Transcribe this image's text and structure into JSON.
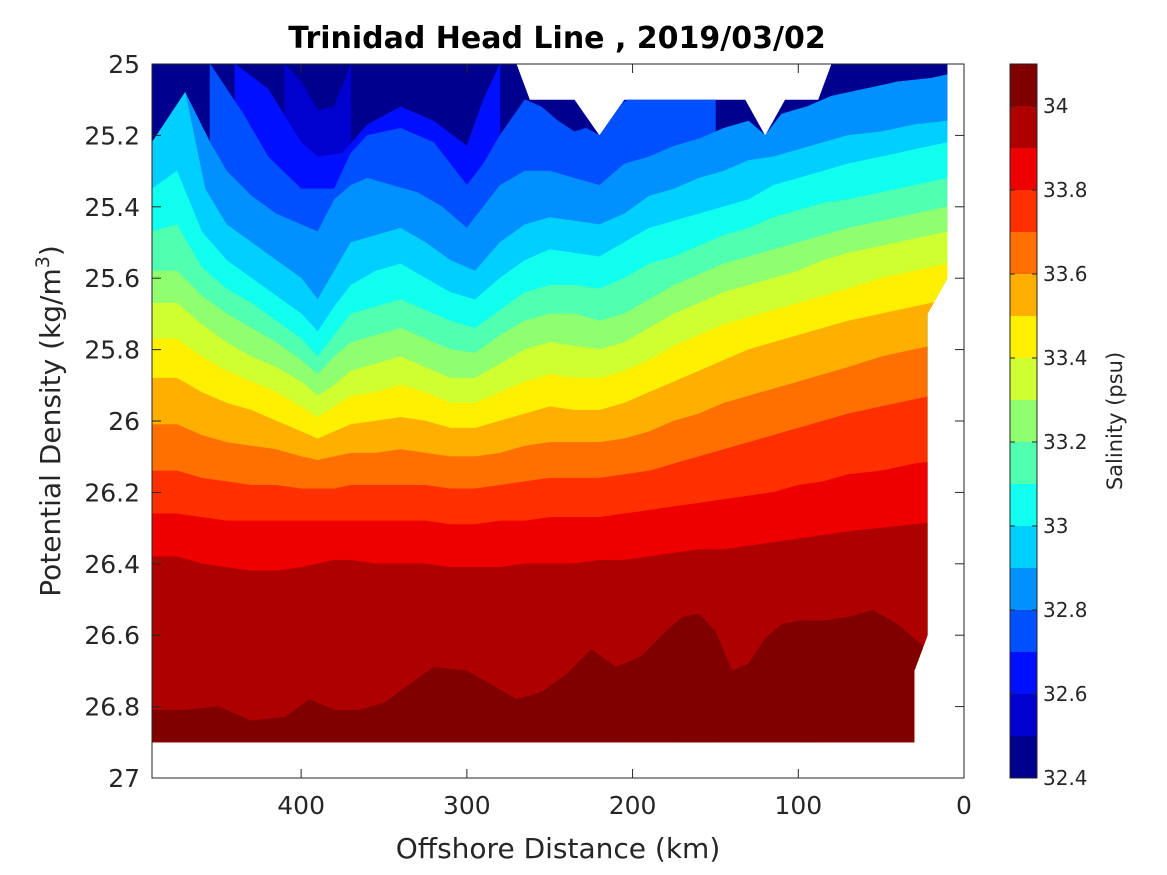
{
  "chart_data": {
    "type": "heatmap",
    "subtype": "filled-contour section",
    "title": "Trinidad Head Line , 2019/03/02",
    "xlabel": "Offshore Distance (km)",
    "ylabel_main": "Potential Density (kg/m",
    "ylabel_sup": "3",
    "ylabel_close": ")",
    "xlim": [
      490,
      0
    ],
    "x_reversed": true,
    "ylim": [
      25,
      27
    ],
    "y_reversed": true,
    "x_ticks": [
      400,
      300,
      200,
      100,
      0
    ],
    "x_tick_labels": [
      "400",
      "300",
      "200",
      "100",
      "0"
    ],
    "y_ticks": [
      25,
      25.2,
      25.4,
      25.6,
      25.8,
      26,
      26.2,
      26.4,
      26.6,
      26.8,
      27
    ],
    "y_tick_labels": [
      "25",
      "25.2",
      "25.4",
      "25.6",
      "25.8",
      "26",
      "26.2",
      "26.4",
      "26.6",
      "26.8",
      "27"
    ],
    "colorbar": {
      "label": "Salinity (psu)",
      "range": [
        32.4,
        34.1
      ],
      "ticks": [
        32.4,
        32.6,
        32.8,
        33,
        33.2,
        33.4,
        33.6,
        33.8,
        34
      ],
      "tick_labels": [
        "32.4",
        "32.6",
        "32.8",
        "33",
        "33.2",
        "33.4",
        "33.6",
        "33.8",
        "34"
      ],
      "level_boundaries": [
        32.4,
        32.5,
        32.6,
        32.7,
        32.8,
        32.9,
        33.0,
        33.1,
        33.2,
        33.3,
        33.4,
        33.5,
        33.6,
        33.7,
        33.8,
        33.9,
        34.0,
        34.1
      ],
      "colors": [
        "#00008f",
        "#0000cf",
        "#0010ff",
        "#0050ff",
        "#0090ff",
        "#00cfff",
        "#10ffef",
        "#50ffaf",
        "#8fff70",
        "#cfff30",
        "#ffef00",
        "#ffaf00",
        "#ff7000",
        "#ff3000",
        "#ef0000",
        "#af0000",
        "#800000"
      ]
    },
    "isohalines": [
      {
        "level": 32.5,
        "x": [
          410,
          400,
          390,
          380,
          370
        ],
        "y": [
          25.0,
          25.05,
          25.13,
          25.12,
          25.0
        ]
      },
      {
        "level": 32.6,
        "x": [
          440,
          420,
          400,
          390,
          375,
          360,
          340,
          320,
          300,
          290,
          280
        ],
        "y": [
          25.0,
          25.07,
          25.22,
          25.26,
          25.25,
          25.17,
          25.12,
          25.16,
          25.23,
          25.1,
          25.0
        ]
      },
      {
        "level": 32.7,
        "x": [
          455,
          435,
          420,
          400,
          380,
          370,
          360,
          340,
          320,
          300,
          290,
          280,
          265,
          255,
          245,
          235,
          228,
          220,
          210,
          195,
          180,
          165,
          150
        ],
        "y": [
          25.0,
          25.14,
          25.26,
          25.35,
          25.35,
          25.25,
          25.2,
          25.18,
          25.22,
          25.34,
          25.28,
          25.2,
          25.1,
          25.12,
          25.16,
          25.19,
          25.18,
          25.2,
          25.12,
          25.08,
          25.06,
          25.04,
          25.0
        ]
      },
      {
        "level": 32.8,
        "x": [
          470,
          455,
          445,
          430,
          415,
          400,
          390,
          380,
          370,
          360,
          345,
          330,
          315,
          300,
          290,
          280,
          265,
          250,
          235,
          220,
          205,
          190,
          175,
          160,
          145,
          130,
          120,
          110,
          95,
          80,
          60,
          40,
          20,
          10
        ],
        "y": [
          25.08,
          25.22,
          25.3,
          25.37,
          25.42,
          25.45,
          25.47,
          25.38,
          25.34,
          25.32,
          25.34,
          25.36,
          25.4,
          25.46,
          25.4,
          25.34,
          25.3,
          25.3,
          25.32,
          25.34,
          25.28,
          25.26,
          25.23,
          25.21,
          25.18,
          25.16,
          25.2,
          25.14,
          25.12,
          25.09,
          25.07,
          25.05,
          25.04,
          25.03
        ]
      },
      {
        "level": 32.9,
        "x": [
          490,
          470,
          458,
          445,
          430,
          415,
          400,
          390,
          380,
          370,
          355,
          340,
          325,
          310,
          295,
          280,
          265,
          250,
          235,
          220,
          205,
          190,
          175,
          160,
          145,
          130,
          115,
          100,
          85,
          70,
          50,
          30,
          10
        ],
        "y": [
          25.22,
          25.08,
          25.35,
          25.45,
          25.5,
          25.55,
          25.6,
          25.66,
          25.58,
          25.5,
          25.48,
          25.46,
          25.5,
          25.55,
          25.58,
          25.5,
          25.45,
          25.43,
          25.44,
          25.45,
          25.42,
          25.37,
          25.35,
          25.32,
          25.3,
          25.27,
          25.26,
          25.24,
          25.22,
          25.2,
          25.19,
          25.17,
          25.16
        ]
      },
      {
        "level": 33.0,
        "x": [
          490,
          475,
          460,
          445,
          430,
          415,
          400,
          390,
          380,
          370,
          355,
          340,
          325,
          310,
          295,
          280,
          265,
          250,
          235,
          220,
          205,
          190,
          175,
          160,
          145,
          130,
          115,
          100,
          85,
          70,
          50,
          30,
          10
        ],
        "y": [
          25.35,
          25.3,
          25.47,
          25.55,
          25.6,
          25.65,
          25.7,
          25.75,
          25.68,
          25.62,
          25.58,
          25.56,
          25.6,
          25.64,
          25.66,
          25.6,
          25.55,
          25.52,
          25.53,
          25.54,
          25.5,
          25.46,
          25.44,
          25.42,
          25.4,
          25.38,
          25.34,
          25.32,
          25.3,
          25.28,
          25.26,
          25.24,
          25.22
        ]
      },
      {
        "level": 33.1,
        "x": [
          490,
          475,
          460,
          445,
          430,
          415,
          400,
          390,
          380,
          370,
          355,
          340,
          325,
          310,
          295,
          280,
          265,
          250,
          235,
          220,
          205,
          190,
          175,
          160,
          145,
          130,
          115,
          100,
          85,
          70,
          50,
          30,
          10
        ],
        "y": [
          25.47,
          25.45,
          25.57,
          25.63,
          25.67,
          25.72,
          25.77,
          25.82,
          25.76,
          25.7,
          25.68,
          25.66,
          25.69,
          25.72,
          25.74,
          25.69,
          25.64,
          25.62,
          25.62,
          25.63,
          25.6,
          25.56,
          25.54,
          25.51,
          25.48,
          25.46,
          25.43,
          25.41,
          25.39,
          25.38,
          25.36,
          25.34,
          25.32
        ]
      },
      {
        "level": 33.2,
        "x": [
          490,
          475,
          460,
          445,
          430,
          415,
          400,
          390,
          380,
          370,
          355,
          340,
          325,
          310,
          295,
          280,
          265,
          250,
          235,
          220,
          205,
          190,
          175,
          160,
          145,
          130,
          115,
          100,
          85,
          70,
          50,
          30,
          10
        ],
        "y": [
          25.58,
          25.58,
          25.65,
          25.7,
          25.74,
          25.78,
          25.83,
          25.87,
          25.82,
          25.78,
          25.76,
          25.74,
          25.77,
          25.8,
          25.81,
          25.76,
          25.72,
          25.7,
          25.7,
          25.72,
          25.7,
          25.66,
          25.62,
          25.59,
          25.56,
          25.54,
          25.52,
          25.5,
          25.48,
          25.46,
          25.44,
          25.42,
          25.4
        ]
      },
      {
        "level": 33.3,
        "x": [
          490,
          475,
          460,
          445,
          430,
          415,
          400,
          390,
          380,
          370,
          355,
          340,
          325,
          310,
          295,
          280,
          265,
          250,
          235,
          220,
          205,
          190,
          175,
          160,
          145,
          130,
          115,
          100,
          85,
          70,
          50,
          30,
          10
        ],
        "y": [
          25.67,
          25.67,
          25.73,
          25.78,
          25.82,
          25.85,
          25.89,
          25.93,
          25.9,
          25.86,
          25.84,
          25.82,
          25.85,
          25.88,
          25.88,
          25.84,
          25.8,
          25.78,
          25.79,
          25.8,
          25.78,
          25.74,
          25.7,
          25.67,
          25.64,
          25.62,
          25.6,
          25.58,
          25.55,
          25.53,
          25.51,
          25.49,
          25.47
        ]
      },
      {
        "level": 33.4,
        "x": [
          490,
          475,
          460,
          445,
          430,
          415,
          400,
          390,
          380,
          370,
          355,
          340,
          325,
          310,
          295,
          280,
          265,
          250,
          235,
          220,
          205,
          190,
          175,
          160,
          145,
          130,
          115,
          100,
          85,
          70,
          50,
          30,
          10
        ],
        "y": [
          25.77,
          25.77,
          25.82,
          25.86,
          25.89,
          25.92,
          25.96,
          25.99,
          25.96,
          25.93,
          25.92,
          25.9,
          25.92,
          25.95,
          25.95,
          25.92,
          25.89,
          25.87,
          25.88,
          25.88,
          25.86,
          25.83,
          25.79,
          25.76,
          25.73,
          25.71,
          25.69,
          25.67,
          25.65,
          25.63,
          25.6,
          25.58,
          25.56
        ]
      },
      {
        "level": 33.5,
        "x": [
          490,
          475,
          460,
          445,
          430,
          415,
          400,
          390,
          380,
          370,
          355,
          340,
          325,
          310,
          295,
          280,
          265,
          250,
          235,
          220,
          205,
          190,
          175,
          160,
          145,
          130,
          115,
          100,
          85,
          70,
          50,
          30,
          10
        ],
        "y": [
          25.88,
          25.88,
          25.92,
          25.95,
          25.97,
          26.0,
          26.03,
          26.05,
          26.03,
          26.01,
          26.0,
          25.99,
          26.0,
          26.02,
          26.02,
          26.0,
          25.98,
          25.96,
          25.97,
          25.97,
          25.95,
          25.92,
          25.89,
          25.86,
          25.83,
          25.8,
          25.78,
          25.76,
          25.74,
          25.72,
          25.7,
          25.68,
          25.66
        ]
      },
      {
        "level": 33.6,
        "x": [
          490,
          475,
          460,
          445,
          430,
          415,
          400,
          390,
          380,
          370,
          355,
          340,
          325,
          310,
          295,
          280,
          265,
          250,
          235,
          220,
          205,
          190,
          175,
          160,
          145,
          130,
          115,
          100,
          85,
          70,
          50,
          30,
          10
        ],
        "y": [
          26.01,
          26.01,
          26.04,
          26.06,
          26.07,
          26.08,
          26.1,
          26.11,
          26.1,
          26.09,
          26.09,
          26.08,
          26.09,
          26.1,
          26.1,
          26.09,
          26.07,
          26.06,
          26.06,
          26.06,
          26.05,
          26.03,
          26.0,
          25.98,
          25.95,
          25.93,
          25.91,
          25.89,
          25.87,
          25.85,
          25.82,
          25.8,
          25.78
        ]
      },
      {
        "level": 33.7,
        "x": [
          490,
          475,
          460,
          445,
          430,
          415,
          400,
          390,
          380,
          370,
          355,
          340,
          325,
          310,
          295,
          280,
          265,
          250,
          235,
          220,
          205,
          190,
          175,
          160,
          145,
          130,
          115,
          100,
          85,
          70,
          50,
          30,
          10
        ],
        "y": [
          26.14,
          26.14,
          26.16,
          26.17,
          26.18,
          26.18,
          26.19,
          26.19,
          26.19,
          26.18,
          26.18,
          26.18,
          26.18,
          26.19,
          26.19,
          26.18,
          26.17,
          26.16,
          26.16,
          26.16,
          26.15,
          26.14,
          26.12,
          26.1,
          26.08,
          26.06,
          26.04,
          26.02,
          26.0,
          25.98,
          25.96,
          25.94,
          25.92
        ]
      },
      {
        "level": 33.8,
        "x": [
          490,
          475,
          460,
          445,
          430,
          415,
          400,
          390,
          380,
          370,
          355,
          340,
          325,
          310,
          295,
          280,
          265,
          250,
          235,
          220,
          205,
          190,
          175,
          160,
          145,
          130,
          115,
          100,
          85,
          70,
          50,
          30,
          10
        ],
        "y": [
          26.26,
          26.26,
          26.27,
          26.28,
          26.28,
          26.28,
          26.28,
          26.28,
          26.28,
          26.28,
          26.28,
          26.28,
          26.28,
          26.29,
          26.29,
          26.28,
          26.28,
          26.27,
          26.27,
          26.27,
          26.26,
          26.25,
          26.24,
          26.23,
          26.22,
          26.21,
          26.2,
          26.18,
          26.17,
          26.15,
          26.14,
          26.12,
          26.11
        ]
      },
      {
        "level": 33.9,
        "x": [
          490,
          475,
          460,
          445,
          430,
          415,
          400,
          390,
          380,
          370,
          355,
          340,
          325,
          310,
          295,
          280,
          265,
          250,
          235,
          220,
          205,
          190,
          175,
          160,
          145,
          130,
          115,
          100,
          85,
          70,
          50,
          30,
          10
        ],
        "y": [
          26.38,
          26.38,
          26.4,
          26.41,
          26.42,
          26.42,
          26.41,
          26.4,
          26.39,
          26.39,
          26.4,
          26.4,
          26.4,
          26.41,
          26.41,
          26.41,
          26.4,
          26.4,
          26.4,
          26.39,
          26.39,
          26.38,
          26.37,
          26.36,
          26.36,
          26.35,
          26.34,
          26.33,
          26.32,
          26.31,
          26.3,
          26.29,
          26.28
        ]
      },
      {
        "level": 34.0,
        "x": [
          490,
          470,
          450,
          430,
          410,
          395,
          380,
          365,
          350,
          335,
          320,
          300,
          285,
          270,
          255,
          240,
          225,
          210,
          195,
          180,
          170,
          160,
          150,
          140,
          130,
          120,
          110,
          100,
          85,
          70,
          55,
          40,
          25
        ],
        "y": [
          26.81,
          26.81,
          26.8,
          26.84,
          26.83,
          26.78,
          26.81,
          26.81,
          26.79,
          26.74,
          26.69,
          26.7,
          26.74,
          26.78,
          26.76,
          26.71,
          26.64,
          26.69,
          26.66,
          26.59,
          26.55,
          26.54,
          26.59,
          26.7,
          26.68,
          26.61,
          26.57,
          26.56,
          26.56,
          26.55,
          26.53,
          26.57,
          26.63
        ]
      },
      {
        "level": 34.1,
        "x": [
          200,
          190,
          180,
          170,
          150,
          140,
          130,
          120,
          110,
          100,
          85
        ],
        "y": [
          26.9,
          26.88,
          26.89,
          26.9,
          26.9,
          26.89,
          26.87,
          26.87,
          26.88,
          26.9,
          26.9
        ]
      }
    ],
    "data_boundary": {
      "top_points": [
        [
          490,
          25.0
        ],
        [
          270,
          25.0
        ],
        [
          262,
          25.1
        ],
        [
          235,
          25.1
        ],
        [
          220,
          25.2
        ],
        [
          205,
          25.1
        ],
        [
          132,
          25.1
        ],
        [
          120,
          25.2
        ],
        [
          108,
          25.1
        ],
        [
          88,
          25.1
        ],
        [
          80,
          25.0
        ],
        [
          10,
          25.0
        ]
      ],
      "right_points": [
        [
          10,
          25.0
        ],
        [
          10,
          25.6
        ],
        [
          22,
          25.7
        ],
        [
          22,
          26.6
        ],
        [
          30,
          26.7
        ],
        [
          30,
          26.9
        ]
      ],
      "bottom": 26.9
    }
  }
}
